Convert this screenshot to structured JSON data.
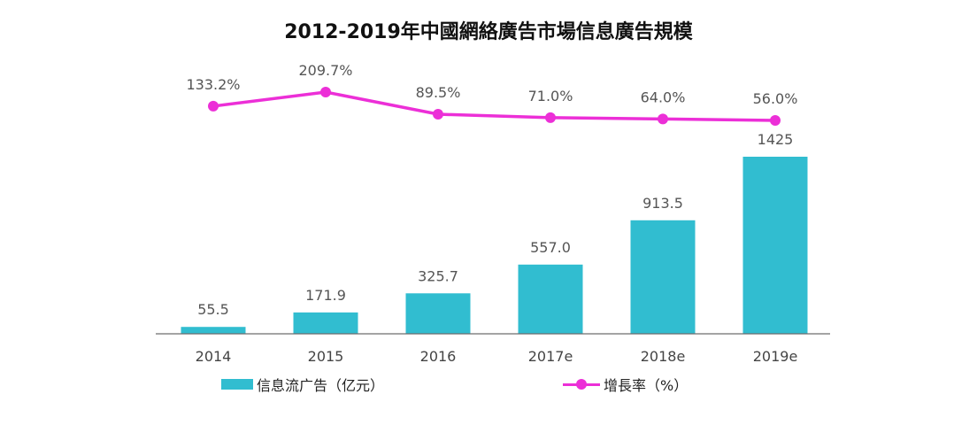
{
  "title": "2012-2019年中國網絡廣告市場信息廣告規模",
  "legend": {
    "bar_label": "信息流广告（亿元）",
    "line_label": "增長率（%）"
  },
  "colors": {
    "bar": "#31bdd0",
    "line": "#ec2fd7",
    "axis": "#6d6d6d",
    "label": "#555555"
  },
  "chart_data": {
    "type": "bar",
    "categories": [
      "2014",
      "2015",
      "2016",
      "2017e",
      "2018e",
      "2019e"
    ],
    "series": [
      {
        "name": "信息流广告（亿元）",
        "type": "bar",
        "values": [
          55.5,
          171.9,
          325.7,
          557.0,
          913.5,
          1425
        ],
        "labels": [
          "55.5",
          "171.9",
          "325.7",
          "557.0",
          "913.5",
          "1425"
        ]
      },
      {
        "name": "增長率（%）",
        "type": "line",
        "values": [
          133.2,
          209.7,
          89.5,
          71.0,
          64.0,
          56.0
        ],
        "labels": [
          "133.2%",
          "209.7%",
          "89.5%",
          "71.0%",
          "64.0%",
          "56.0%"
        ]
      }
    ],
    "ylim": [
      0,
      1425
    ],
    "grid": false,
    "legend_position": "bottom"
  }
}
